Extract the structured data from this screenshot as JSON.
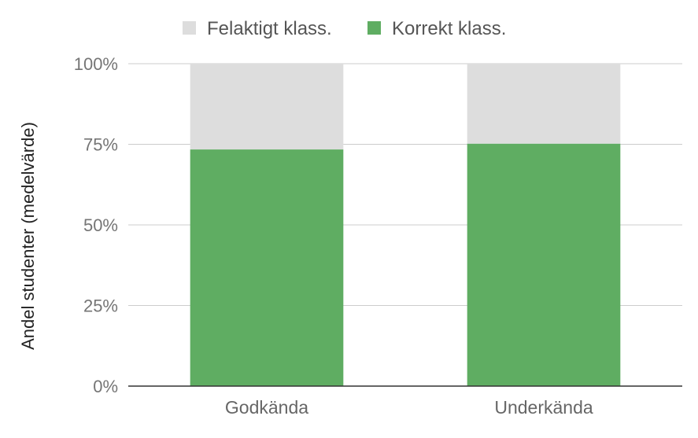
{
  "chart_data": {
    "type": "bar",
    "stacked": true,
    "stack_mode": "percent",
    "categories": [
      "Godkända",
      "Underkända"
    ],
    "series": [
      {
        "name": "Korrekt klass.",
        "color": "#5fad62",
        "values": [
          73.4,
          75.2
        ]
      },
      {
        "name": "Felaktigt klass.",
        "color": "#dddddd",
        "values": [
          26.6,
          24.8
        ]
      }
    ],
    "legend_order": [
      1,
      0
    ],
    "legend_position": "top-center",
    "title": "",
    "xlabel": "",
    "ylabel": "Andel studenter (medelvärde)",
    "ylim": [
      0,
      100
    ],
    "yticks": [
      0,
      25,
      50,
      75,
      100
    ],
    "ytick_labels": [
      "0%",
      "25%",
      "50%",
      "75%",
      "100%"
    ],
    "grid": true
  }
}
